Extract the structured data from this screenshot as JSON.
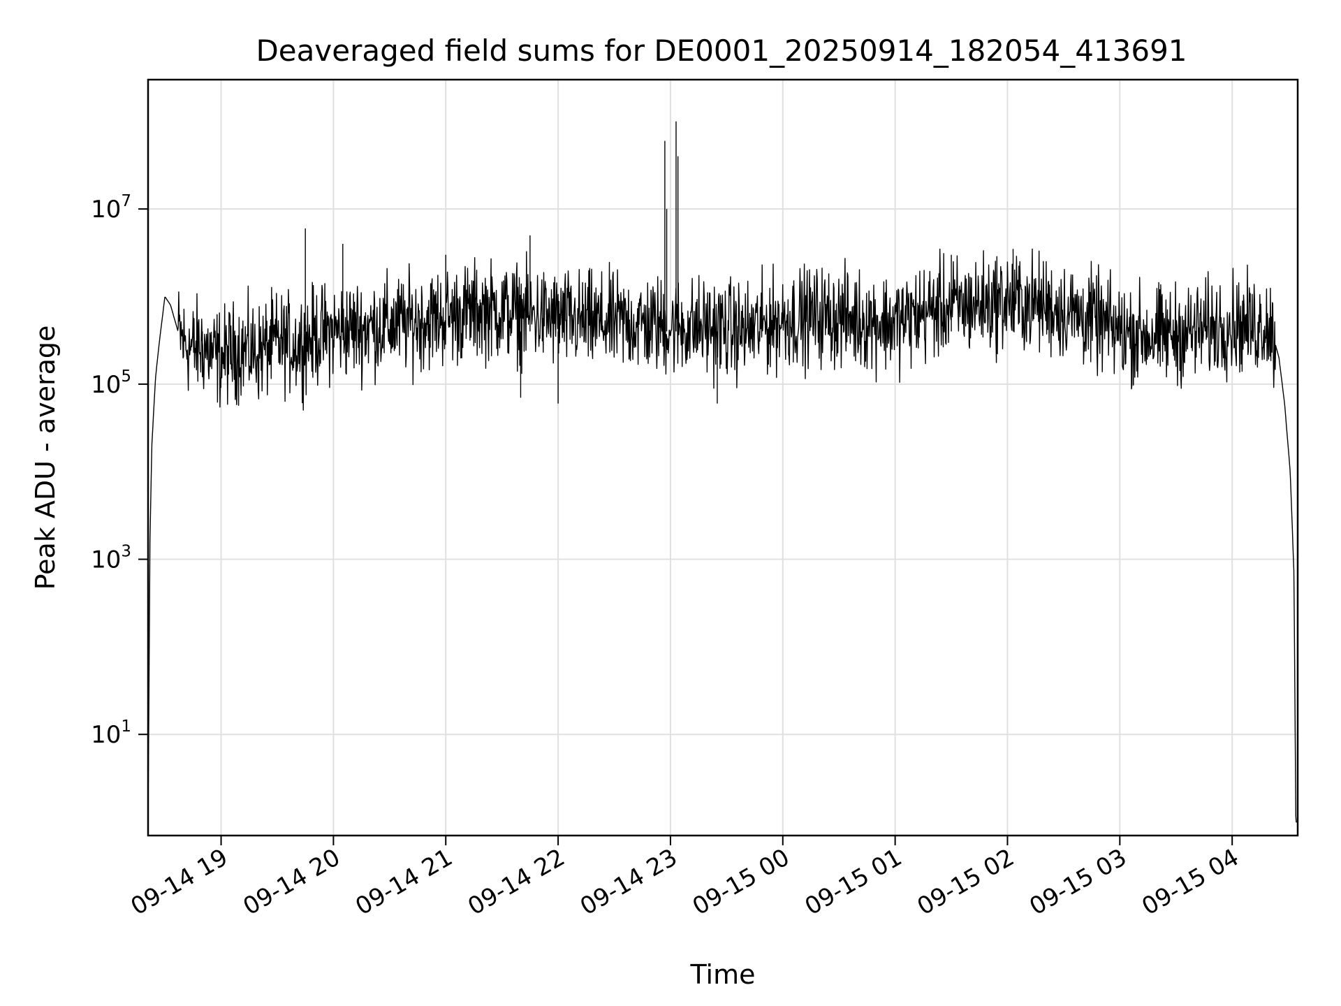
{
  "chart_data": {
    "type": "line",
    "title": "Deaveraged field sums for DE0001_20250914_182054_413691",
    "xlabel": "Time",
    "ylabel": "Peak ADU - average",
    "x_ticks": [
      "09-14 19",
      "09-14 20",
      "09-14 21",
      "09-14 22",
      "09-14 23",
      "09-15 00",
      "09-15 01",
      "09-15 02",
      "09-15 03",
      "09-15 04"
    ],
    "y_ticks": [
      {
        "base": "10",
        "exp": "1"
      },
      {
        "base": "10",
        "exp": "3"
      },
      {
        "base": "10",
        "exp": "5"
      },
      {
        "base": "10",
        "exp": "7"
      }
    ],
    "yscale": "log",
    "ylim": [
      0.7,
      300000000
    ],
    "xlim": [
      "2025-09-14 18:21",
      "2025-09-15 04:35"
    ],
    "grid": true,
    "line_color": "#000000",
    "series": [
      {
        "x": [
          "2025-09-14 18:21",
          "2025-09-14 18:22",
          "2025-09-14 18:23",
          "2025-09-14 18:25",
          "2025-09-14 18:27",
          "2025-09-14 18:30",
          "2025-09-14 18:33",
          "2025-09-14 18:37",
          "2025-09-14 18:40",
          "2025-09-14 18:45",
          "2025-09-14 18:50",
          "2025-09-14 18:55",
          "2025-09-14 19:00",
          "2025-09-14 19:10",
          "2025-09-14 19:20",
          "2025-09-14 19:30",
          "2025-09-14 19:40",
          "2025-09-14 19:50",
          "2025-09-14 20:00",
          "2025-09-14 20:20",
          "2025-09-14 20:40",
          "2025-09-14 21:00",
          "2025-09-14 21:20",
          "2025-09-14 21:40",
          "2025-09-14 22:00",
          "2025-09-14 22:20",
          "2025-09-14 22:40",
          "2025-09-14 23:00",
          "2025-09-14 23:20",
          "2025-09-14 23:40",
          "2025-09-15 00:00",
          "2025-09-15 00:20",
          "2025-09-15 00:40",
          "2025-09-15 01:00",
          "2025-09-15 01:20",
          "2025-09-15 01:40",
          "2025-09-15 02:00",
          "2025-09-15 02:20",
          "2025-09-15 02:40",
          "2025-09-15 03:00",
          "2025-09-15 03:20",
          "2025-09-15 03:40",
          "2025-09-15 04:00",
          "2025-09-15 04:10",
          "2025-09-15 04:20",
          "2025-09-15 04:25",
          "2025-09-15 04:28",
          "2025-09-15 04:31",
          "2025-09-15 04:33",
          "2025-09-15 04:34"
        ],
        "y": [
          1.0,
          1500,
          20000,
          120000,
          300000,
          1000000,
          800000,
          400000,
          300000,
          250000,
          280000,
          220000,
          200000,
          250000,
          230000,
          300000,
          280000,
          350000,
          400000,
          450000,
          500000,
          600000,
          700000,
          650000,
          550000,
          500000,
          500000,
          450000,
          450000,
          400000,
          550000,
          600000,
          550000,
          500000,
          700000,
          800000,
          900000,
          800000,
          600000,
          400000,
          350000,
          400000,
          500000,
          450000,
          500000,
          200000,
          60000,
          10000,
          700,
          1.0
        ]
      }
    ],
    "spikes": [
      {
        "x": "2025-09-14 18:50",
        "y": 120000
      },
      {
        "x": "2025-09-14 19:45",
        "y": 6000000
      },
      {
        "x": "2025-09-14 20:05",
        "y": 4000000
      },
      {
        "x": "2025-09-14 21:00",
        "y": 3000000
      },
      {
        "x": "2025-09-14 21:40",
        "y": 70000
      },
      {
        "x": "2025-09-14 21:45",
        "y": 5000000
      },
      {
        "x": "2025-09-14 22:00",
        "y": 60000
      },
      {
        "x": "2025-09-14 22:57",
        "y": 60000000
      },
      {
        "x": "2025-09-14 22:58",
        "y": 10000000
      },
      {
        "x": "2025-09-14 23:03",
        "y": 100000000
      },
      {
        "x": "2025-09-14 23:04",
        "y": 40000000
      },
      {
        "x": "2025-09-14 23:25",
        "y": 60000
      },
      {
        "x": "2025-09-15 01:30",
        "y": 3000000
      },
      {
        "x": "2025-09-15 02:03",
        "y": 3500000
      }
    ]
  }
}
